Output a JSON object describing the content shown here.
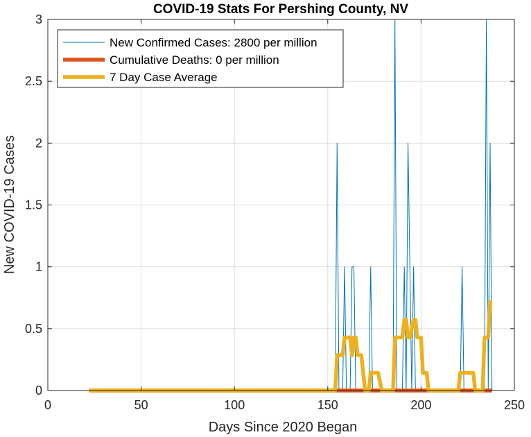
{
  "chart_data": {
    "type": "line",
    "title": "COVID-19 Stats For Pershing County, NV",
    "xlabel": "Days Since 2020 Began",
    "ylabel": "New COVID-19 Cases",
    "xlim": [
      0,
      250
    ],
    "ylim": [
      0,
      3
    ],
    "xticks": [
      "0",
      "50",
      "100",
      "150",
      "200",
      "250"
    ],
    "yticks": [
      "0",
      "0.5",
      "1",
      "1.5",
      "2",
      "2.5",
      "3"
    ],
    "grid": true,
    "legend_position": "top-left",
    "series": [
      {
        "name": "New Confirmed Cases: 2800 per million",
        "color": "#0072BD",
        "style": "thin",
        "x": [
          22,
          154,
          155,
          156,
          158,
          159,
          160,
          162,
          163,
          164,
          165,
          172,
          173,
          174,
          185,
          186,
          187,
          190,
          191,
          192,
          193,
          195,
          196,
          197,
          221,
          222,
          223,
          234,
          235,
          236,
          237,
          238
        ],
        "y": [
          0,
          0,
          2,
          0,
          0,
          1,
          0,
          0,
          1,
          1,
          0,
          0,
          1,
          0,
          0,
          3,
          0,
          0,
          1,
          0,
          2,
          0,
          1,
          0,
          0,
          1,
          0,
          0,
          3,
          0,
          2,
          0
        ]
      },
      {
        "name": "Cumulative Deaths: 0 per million",
        "color": "#D95319",
        "style": "thick",
        "x": [
          22,
          238
        ],
        "y": [
          0,
          0
        ]
      },
      {
        "name": "7 Day Case Average",
        "color": "#EDB120",
        "style": "thick",
        "x": [
          22,
          154,
          155,
          158,
          159,
          162,
          163,
          164,
          165,
          166,
          168,
          169,
          170,
          172,
          173,
          176,
          177,
          179,
          180,
          185,
          186,
          190,
          191,
          192,
          193,
          194,
          196,
          197,
          198,
          200,
          201,
          203,
          204,
          220,
          221,
          222,
          227,
          228,
          229,
          233,
          234,
          235,
          236,
          237,
          238
        ],
        "y": [
          0,
          0,
          0.286,
          0.286,
          0.429,
          0.429,
          0.286,
          0.429,
          0.429,
          0.286,
          0.286,
          0.143,
          0,
          0,
          0.143,
          0.143,
          0.143,
          0,
          0,
          0,
          0.429,
          0.429,
          0.571,
          0.571,
          0.429,
          0.429,
          0.571,
          0.571,
          0.429,
          0.429,
          0.143,
          0.143,
          0,
          0,
          0.143,
          0.143,
          0.143,
          0.143,
          0,
          0,
          0.429,
          0.429,
          0.429,
          0.714,
          0.714
        ]
      }
    ]
  }
}
